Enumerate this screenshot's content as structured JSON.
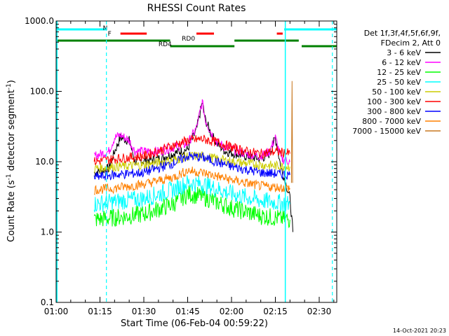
{
  "chart_data": {
    "type": "line",
    "title": "RHESSI Count Rates",
    "xlabel": "Start Time (06-Feb-04 00:59:22)",
    "ylabel_main": "Count Rate (s",
    "ylabel_sup1": "-1",
    "ylabel_mid": " detector segment",
    "ylabel_sup2": "-1",
    "ylabel_end": ")",
    "y_scale": "log",
    "ylim": [
      0.1,
      1000
    ],
    "xlim_minutes": [
      0,
      96
    ],
    "x_ticks": [
      {
        "label": "01:00",
        "min": 0
      },
      {
        "label": "01:15",
        "min": 15
      },
      {
        "label": "01:30",
        "min": 30
      },
      {
        "label": "01:45",
        "min": 45
      },
      {
        "label": "02:00",
        "min": 60
      },
      {
        "label": "02:15",
        "min": 75
      },
      {
        "label": "02:30",
        "min": 90
      }
    ],
    "y_ticks": [
      {
        "label": "0.1",
        "v": 0.1
      },
      {
        "label": "1.0",
        "v": 1
      },
      {
        "label": "10.0",
        "v": 10
      },
      {
        "label": "100.0",
        "v": 100
      },
      {
        "label": "1000.0",
        "v": 1000
      }
    ],
    "legend_header": [
      "Det 1f,3f,4f,5f,6f,9f,",
      "FDecim 2, Att 0"
    ],
    "legend_placement": "right",
    "series": [
      {
        "name": "3 - 6 keV",
        "color": "#000000",
        "values": [
          [
            13,
            7
          ],
          [
            18,
            8
          ],
          [
            20,
            14
          ],
          [
            22,
            22
          ],
          [
            25,
            20
          ],
          [
            27,
            10
          ],
          [
            35,
            11
          ],
          [
            40,
            13
          ],
          [
            45,
            15
          ],
          [
            48,
            28
          ],
          [
            50,
            70
          ],
          [
            51,
            40
          ],
          [
            53,
            25
          ],
          [
            55,
            18
          ],
          [
            58,
            14
          ],
          [
            65,
            12
          ],
          [
            70,
            11
          ],
          [
            73,
            13
          ],
          [
            75,
            22
          ],
          [
            77,
            8
          ],
          [
            78,
            6
          ],
          [
            80,
            3
          ],
          [
            81,
            1
          ]
        ]
      },
      {
        "name": "6 - 12 keV",
        "color": "#ff00ff",
        "values": [
          [
            13,
            12
          ],
          [
            18,
            14
          ],
          [
            20,
            22
          ],
          [
            22,
            24
          ],
          [
            25,
            20
          ],
          [
            27,
            14
          ],
          [
            35,
            14
          ],
          [
            40,
            16
          ],
          [
            45,
            18
          ],
          [
            48,
            30
          ],
          [
            50,
            70
          ],
          [
            51,
            40
          ],
          [
            53,
            26
          ],
          [
            55,
            19
          ],
          [
            58,
            16
          ],
          [
            65,
            13
          ],
          [
            70,
            12
          ],
          [
            73,
            14
          ],
          [
            75,
            22
          ],
          [
            77,
            11
          ],
          [
            80,
            10
          ]
        ]
      },
      {
        "name": "12 - 25 keV",
        "color": "#00ff00",
        "values": [
          [
            13,
            1.5
          ],
          [
            20,
            1.6
          ],
          [
            30,
            1.8
          ],
          [
            40,
            2.5
          ],
          [
            45,
            3.5
          ],
          [
            50,
            3.2
          ],
          [
            60,
            2.2
          ],
          [
            70,
            1.7
          ],
          [
            80,
            1.5
          ]
        ]
      },
      {
        "name": "25 - 50 keV",
        "color": "#00ffff",
        "values": [
          [
            13,
            2.5
          ],
          [
            20,
            2.7
          ],
          [
            30,
            3
          ],
          [
            40,
            4
          ],
          [
            45,
            5
          ],
          [
            50,
            4.8
          ],
          [
            60,
            3.5
          ],
          [
            70,
            2.8
          ],
          [
            80,
            2.5
          ]
        ]
      },
      {
        "name": "50 - 100 keV",
        "color": "#cccc00",
        "values": [
          [
            13,
            8
          ],
          [
            20,
            8.5
          ],
          [
            30,
            9
          ],
          [
            40,
            10.5
          ],
          [
            45,
            12
          ],
          [
            50,
            12
          ],
          [
            60,
            10
          ],
          [
            70,
            9
          ],
          [
            80,
            8.5
          ]
        ]
      },
      {
        "name": "100 - 300 keV",
        "color": "#ff0000",
        "values": [
          [
            13,
            10
          ],
          [
            20,
            11
          ],
          [
            30,
            12
          ],
          [
            40,
            17
          ],
          [
            45,
            20
          ],
          [
            50,
            21
          ],
          [
            55,
            19
          ],
          [
            60,
            16
          ],
          [
            65,
            14
          ],
          [
            70,
            13
          ],
          [
            75,
            14
          ],
          [
            80,
            13
          ]
        ]
      },
      {
        "name": "300 - 800 keV",
        "color": "#0000ff",
        "values": [
          [
            13,
            6
          ],
          [
            20,
            6.5
          ],
          [
            30,
            7
          ],
          [
            40,
            9.5
          ],
          [
            45,
            12
          ],
          [
            50,
            11.5
          ],
          [
            60,
            8.5
          ],
          [
            70,
            7
          ],
          [
            80,
            6.5
          ]
        ]
      },
      {
        "name": "800 - 7000 keV",
        "color": "#ff8000",
        "values": [
          [
            13,
            4
          ],
          [
            20,
            4.2
          ],
          [
            30,
            4.8
          ],
          [
            40,
            6
          ],
          [
            45,
            7.5
          ],
          [
            50,
            7
          ],
          [
            60,
            5.5
          ],
          [
            70,
            4.5
          ],
          [
            80,
            4.2
          ]
        ]
      },
      {
        "name": "7000 - 15000 keV",
        "color": "#c87820",
        "values": [
          [
            80.5,
            5
          ],
          [
            80.7,
            140
          ],
          [
            80.9,
            5
          ]
        ]
      }
    ],
    "flag_bars": [
      {
        "label": "N",
        "color": "#00ffff",
        "segments": [
          [
            0,
            17
          ],
          [
            78,
            96
          ]
        ]
      },
      {
        "label": "F",
        "color": "#ff0000",
        "segments": [
          [
            22,
            31
          ],
          [
            48,
            54
          ],
          [
            75.5,
            77.5
          ]
        ]
      },
      {
        "label": "RD0",
        "color": "#008000",
        "segments": [
          [
            0,
            39
          ],
          [
            61,
            83
          ]
        ]
      },
      {
        "label": "RD4",
        "color": "#008000",
        "segments": [
          [
            39,
            61
          ],
          [
            84,
            96
          ]
        ]
      }
    ],
    "vlines_solid": [
      0.3,
      78.4
    ],
    "vlines_dashed": [
      17.2,
      94.5
    ]
  },
  "footer": {
    "timestamp": "14-Oct-2021 20:23"
  }
}
